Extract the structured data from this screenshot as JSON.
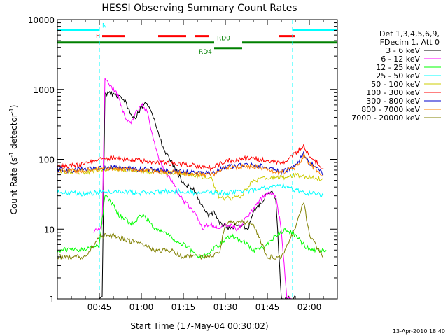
{
  "chart_data": {
    "type": "line",
    "title": "HESSI Observing Summary Count Rates",
    "xlabel": "Start Time (17-May-04 00:30:02)",
    "ylabel_main": "Count Rate (s",
    "ylabel_sup1": "-1",
    "ylabel_mid": " detector",
    "ylabel_sup2": "-1",
    "ylabel_end": ")",
    "timestamp": "13-Apr-2010 18:40",
    "y_scale": "log",
    "ylim": [
      1,
      10000
    ],
    "xlim_minutes": [
      0,
      100
    ],
    "x_ticks": [
      "00:45",
      "01:00",
      "01:15",
      "01:30",
      "01:45",
      "02:00"
    ],
    "y_ticks": [
      "1",
      "10",
      "100",
      "1000",
      "10000"
    ],
    "legend_header": [
      "Det 1,3,4,5,6,9,",
      "FDecim 1, Att 0"
    ],
    "series": [
      {
        "name": "3 - 6 keV",
        "color": "#000000",
        "t": [
          15,
          16,
          17,
          18,
          20,
          22,
          24,
          26,
          28,
          30,
          32,
          34,
          36,
          38,
          40,
          42,
          45,
          48,
          50,
          52,
          54,
          56,
          58,
          60,
          62,
          64,
          66,
          68,
          70,
          72,
          74,
          76,
          78,
          80,
          83,
          84,
          85,
          86
        ],
        "v": [
          1,
          1,
          850,
          900,
          850,
          800,
          700,
          450,
          400,
          550,
          650,
          450,
          230,
          140,
          100,
          75,
          45,
          40,
          30,
          20,
          15,
          18,
          12,
          11,
          10,
          12,
          11,
          10,
          18,
          22,
          28,
          35,
          28,
          1,
          1,
          1,
          1,
          1
        ]
      },
      {
        "name": "6 - 12 keV",
        "color": "#ff00ff",
        "t": [
          13,
          15,
          16,
          17,
          18,
          20,
          22,
          24,
          26,
          28,
          30,
          32,
          34,
          36,
          38,
          40,
          42,
          45,
          48,
          50,
          52,
          54,
          56,
          58,
          60,
          62,
          64,
          66,
          68,
          70,
          72,
          74,
          76,
          78,
          80,
          82,
          84
        ],
        "v": [
          9,
          10,
          12,
          1500,
          1200,
          1000,
          800,
          400,
          330,
          450,
          600,
          500,
          220,
          110,
          70,
          55,
          40,
          25,
          20,
          14,
          10,
          12,
          11,
          10,
          12,
          11,
          10,
          12,
          15,
          20,
          25,
          30,
          35,
          28,
          10,
          1,
          1
        ]
      },
      {
        "name": "12 - 25 keV",
        "color": "#00ff00",
        "t": [
          0,
          5,
          10,
          15,
          17,
          20,
          22,
          24,
          26,
          28,
          30,
          32,
          35,
          38,
          40,
          42,
          45,
          48,
          50,
          52,
          55,
          58,
          60,
          62,
          65,
          68,
          70,
          72,
          75,
          78,
          80,
          82,
          85,
          88,
          90,
          93,
          96
        ],
        "v": [
          5,
          5,
          5,
          6,
          30,
          22,
          16,
          14,
          12,
          13,
          16,
          14,
          10,
          9,
          8,
          7,
          6,
          5,
          4,
          4,
          5,
          6,
          7,
          8,
          7,
          6,
          5,
          5,
          6,
          8,
          9,
          10,
          8,
          6,
          5,
          5,
          5
        ]
      },
      {
        "name": "25 - 50 keV",
        "color": "#00ffff",
        "t": [
          0,
          5,
          10,
          15,
          20,
          25,
          30,
          35,
          40,
          45,
          50,
          55,
          60,
          65,
          70,
          75,
          80,
          85,
          90,
          95
        ],
        "v": [
          34,
          33,
          32,
          34,
          35,
          34,
          33,
          34,
          35,
          34,
          33,
          34,
          33,
          34,
          36,
          40,
          42,
          36,
          33,
          31
        ]
      },
      {
        "name": "50 - 100 keV",
        "color": "#cccc00",
        "t": [
          0,
          5,
          10,
          15,
          20,
          25,
          30,
          35,
          40,
          45,
          50,
          55,
          58,
          60,
          65,
          70,
          75,
          80,
          85,
          90,
          95
        ],
        "v": [
          68,
          67,
          66,
          70,
          72,
          70,
          68,
          66,
          64,
          62,
          58,
          55,
          27,
          28,
          28,
          50,
          55,
          55,
          60,
          55,
          52
        ]
      },
      {
        "name": "100 - 300 keV",
        "color": "#ff0000",
        "t": [
          0,
          5,
          10,
          15,
          20,
          25,
          30,
          35,
          40,
          45,
          50,
          55,
          60,
          65,
          70,
          75,
          80,
          85,
          88,
          90,
          95
        ],
        "v": [
          82,
          80,
          85,
          100,
          105,
          100,
          95,
          90,
          88,
          86,
          80,
          75,
          95,
          100,
          105,
          95,
          85,
          120,
          155,
          110,
          75
        ]
      },
      {
        "name": "300 - 800 keV",
        "color": "#0000cc",
        "t": [
          0,
          5,
          10,
          15,
          20,
          25,
          30,
          35,
          40,
          45,
          50,
          55,
          60,
          65,
          70,
          75,
          80,
          85,
          88,
          90,
          95
        ],
        "v": [
          72,
          70,
          72,
          74,
          76,
          74,
          72,
          70,
          68,
          66,
          64,
          62,
          78,
          82,
          84,
          76,
          66,
          80,
          120,
          90,
          62
        ]
      },
      {
        "name": "800 - 7000 keV",
        "color": "#ff8000",
        "t": [
          0,
          5,
          10,
          15,
          20,
          25,
          30,
          35,
          40,
          45,
          50,
          55,
          60,
          65,
          70,
          75,
          80,
          85,
          88,
          90,
          95
        ],
        "v": [
          70,
          68,
          70,
          72,
          74,
          72,
          70,
          68,
          66,
          64,
          62,
          60,
          74,
          78,
          80,
          72,
          64,
          75,
          110,
          85,
          60
        ]
      },
      {
        "name": "7000 - 20000 keV",
        "color": "#808000",
        "t": [
          0,
          5,
          10,
          15,
          20,
          25,
          30,
          35,
          40,
          45,
          50,
          55,
          58,
          60,
          65,
          70,
          75,
          80,
          85,
          88,
          90,
          95
        ],
        "v": [
          4,
          4,
          4,
          8,
          8,
          7,
          6,
          5,
          5,
          4,
          4,
          4,
          5,
          12,
          13,
          12,
          4,
          4,
          10,
          25,
          8,
          4
        ]
      }
    ],
    "flags": [
      {
        "label": "N",
        "color": "#00ffff",
        "level": 7000,
        "segments": [
          [
            0,
            15
          ],
          [
            84,
            100
          ]
        ]
      },
      {
        "label": "F",
        "color": "#ff0000",
        "level": 5800,
        "segments": [
          [
            16,
            24
          ],
          [
            36,
            46
          ],
          [
            49,
            54
          ],
          [
            79,
            85
          ]
        ]
      },
      {
        "label": "RD0",
        "color": "#008000",
        "level": 4700,
        "segments": [
          [
            0,
            56
          ],
          [
            66,
            100
          ]
        ]
      },
      {
        "label": "RD4",
        "color": "#008000",
        "level": 3900,
        "segments": [
          [
            56,
            66
          ]
        ]
      }
    ],
    "vlines": [
      {
        "t": 0,
        "color": "#00ffff"
      },
      {
        "t": 15,
        "color": "#00ffff"
      },
      {
        "t": 84,
        "color": "#00ffff"
      },
      {
        "t": 100,
        "color": "#00ffff"
      }
    ]
  }
}
